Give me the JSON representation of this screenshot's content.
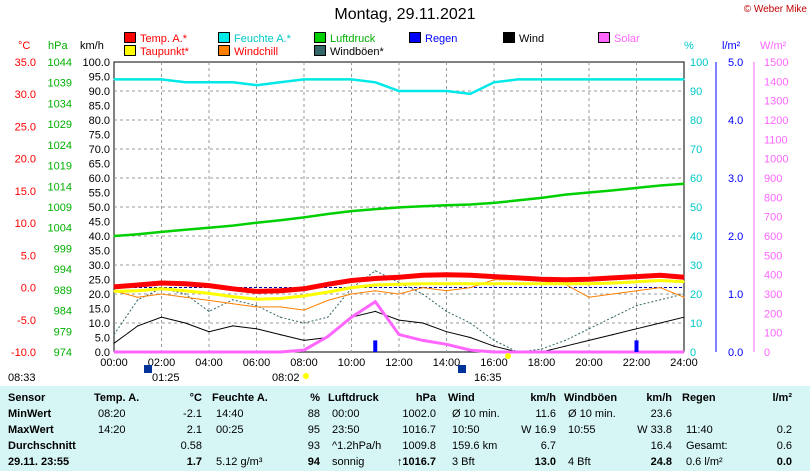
{
  "title": "Montag, 29.11.2021",
  "copyright": "© Weber Mike",
  "legend": [
    {
      "label": "Temp. A.*",
      "color": "#ff0000"
    },
    {
      "label": "Feuchte A.*",
      "color": "#00e8e8"
    },
    {
      "label": "Luftdruck",
      "color": "#00d000"
    },
    {
      "label": "Regen",
      "color": "#0000ff"
    },
    {
      "label": "Wind",
      "color": "#000000"
    },
    {
      "label": "Solar",
      "color": "#ff66ff"
    },
    {
      "label": "Taupunkt*",
      "color": "#ffff00"
    },
    {
      "label": "Windchill",
      "color": "#ff8000"
    },
    {
      "label": "Windböen*",
      "color": "#336666"
    }
  ],
  "axis_units": {
    "temp": "°C",
    "pressure": "hPa",
    "wind": "km/h",
    "humidity": "%",
    "rain": "l/m²",
    "solar": "W/m²"
  },
  "chart_data": {
    "type": "line",
    "x_labels": [
      "00:00",
      "02:00",
      "04:00",
      "06:00",
      "08:00",
      "10:00",
      "12:00",
      "14:00",
      "16:00",
      "18:00",
      "20:00",
      "22:00",
      "24:00"
    ],
    "temp_ticks": [
      "35.0",
      "30.0",
      "25.0",
      "20.0",
      "15.0",
      "10.0",
      "5.0",
      "0.0",
      "-5.0",
      "-10.0"
    ],
    "pressure_ticks": [
      "1044",
      "1039",
      "1034",
      "1029",
      "1024",
      "1019",
      "1014",
      "1009",
      "1004",
      "999",
      "994",
      "989",
      "984",
      "979",
      "974"
    ],
    "wind_ticks": [
      "100.0",
      "95.0",
      "90.0",
      "85.0",
      "80.0",
      "75.0",
      "70.0",
      "65.0",
      "60.0",
      "55.0",
      "50.0",
      "45.0",
      "40.0",
      "35.0",
      "30.0",
      "25.0",
      "20.0",
      "15.0",
      "10.0",
      "5.0",
      "0.0"
    ],
    "humidity_ticks": [
      "100",
      "90",
      "80",
      "70",
      "60",
      "50",
      "40",
      "30",
      "20",
      "10",
      "0"
    ],
    "rain_ticks": [
      "5.0",
      "4.0",
      "3.0",
      "2.0",
      "1.0",
      "0.0"
    ],
    "solar_ticks": [
      "1500",
      "1400",
      "1300",
      "1200",
      "1100",
      "1000",
      "900",
      "800",
      "700",
      "600",
      "500",
      "400",
      "300",
      "200",
      "100",
      "0"
    ],
    "x": [
      0,
      1,
      2,
      3,
      4,
      5,
      6,
      7,
      8,
      9,
      10,
      11,
      12,
      13,
      14,
      15,
      16,
      17,
      18,
      19,
      20,
      21,
      22,
      23,
      24
    ],
    "series": [
      {
        "name": "Temp. A.*",
        "axis": "temp",
        "values": [
          0.1,
          0.4,
          0.7,
          0.6,
          0.3,
          -0.2,
          -0.6,
          -0.5,
          -0.2,
          0.5,
          1.1,
          1.4,
          1.6,
          1.9,
          2.0,
          1.9,
          1.7,
          1.5,
          1.3,
          1.2,
          1.3,
          1.5,
          1.7,
          1.9,
          1.6
        ]
      },
      {
        "name": "Feuchte A.*",
        "axis": "humidity",
        "values": [
          94,
          94,
          94,
          93,
          93,
          93,
          92,
          93,
          94,
          94,
          94,
          93,
          90,
          90,
          90,
          89,
          93,
          94,
          94,
          94,
          94,
          94,
          94,
          94,
          94
        ]
      },
      {
        "name": "Luftdruck",
        "axis": "pressure",
        "values": [
          1002.0,
          1002.4,
          1003.0,
          1003.5,
          1004.0,
          1004.5,
          1005.2,
          1005.8,
          1006.5,
          1007.3,
          1008.0,
          1008.5,
          1008.9,
          1009.2,
          1009.4,
          1009.6,
          1010.0,
          1010.6,
          1011.2,
          1012.0,
          1012.5,
          1013.0,
          1013.6,
          1014.2,
          1014.6
        ]
      },
      {
        "name": "Taupunkt*",
        "axis": "temp",
        "values": [
          -0.6,
          -0.5,
          -0.2,
          -0.5,
          -0.9,
          -1.4,
          -1.8,
          -1.7,
          -1.3,
          -0.7,
          0.0,
          0.4,
          0.5,
          0.6,
          0.6,
          0.6,
          0.6,
          0.6,
          0.6,
          0.6,
          0.6,
          0.7,
          0.9,
          1.1,
          0.9
        ]
      },
      {
        "name": "Wind",
        "axis": "wind",
        "values": [
          3,
          9,
          12,
          10,
          7,
          9,
          8,
          6,
          4,
          5,
          12,
          14,
          11,
          10,
          7,
          5,
          2,
          0,
          0,
          2,
          4,
          6,
          8,
          10,
          12
        ]
      },
      {
        "name": "Windchill",
        "axis": "temp",
        "values": [
          -0.5,
          -1.5,
          -1.0,
          -1.5,
          -2.0,
          -2.5,
          -3.0,
          -3.0,
          -3.5,
          -2.0,
          -1.0,
          -0.5,
          -1.0,
          0.0,
          -0.5,
          0.0,
          1.2,
          1.2,
          1.0,
          0.5,
          -1.5,
          -1.0,
          -0.5,
          0.0,
          -1.5
        ]
      },
      {
        "name": "Windböen*",
        "axis": "wind",
        "values": [
          6,
          18,
          22,
          20,
          14,
          18,
          16,
          12,
          10,
          12,
          22,
          28,
          24,
          20,
          14,
          10,
          4,
          0,
          1,
          4,
          8,
          12,
          16,
          18,
          20
        ]
      },
      {
        "name": "Solar",
        "axis": "solar",
        "values": [
          0,
          0,
          0,
          0,
          0,
          0,
          0,
          0,
          10,
          80,
          180,
          260,
          90,
          60,
          40,
          10,
          0,
          0,
          0,
          0,
          0,
          0,
          0,
          0,
          0
        ]
      },
      {
        "name": "Regen",
        "axis": "rain",
        "values": [
          0,
          0,
          0,
          0,
          0,
          0,
          0,
          0,
          0,
          0,
          0,
          0.2,
          0,
          0,
          0,
          0,
          0,
          0,
          0,
          0,
          0,
          0,
          0.2,
          0,
          0
        ]
      }
    ]
  },
  "marks": {
    "sunrise": "08:02",
    "sunset": "16:35",
    "moonrise": "01:25",
    "left_time": "08:33"
  },
  "table": {
    "headers": [
      {
        "label": "Sensor",
        "unit": ""
      },
      {
        "label": "Temp. A.",
        "unit": "°C"
      },
      {
        "label": "Feuchte A.",
        "unit": "%"
      },
      {
        "label": "Luftdruck",
        "unit": "hPa"
      },
      {
        "label": "Wind",
        "unit": "km/h"
      },
      {
        "label": "Windböen",
        "unit": "km/h"
      },
      {
        "label": "Regen",
        "unit": "l/m²"
      }
    ],
    "rows": [
      {
        "label": "MinWert",
        "temp_time": "08:20",
        "temp": "-2.1",
        "hum_time": "14:40",
        "hum": "88",
        "press_time": "00:00",
        "press": "1002.0",
        "wind_desc": "Ø 10 min.",
        "wind": "11.6",
        "gust_desc": "Ø 10 min.",
        "gust": "23.6",
        "rain_desc": "",
        "rain": ""
      },
      {
        "label": "MaxWert",
        "temp_time": "14:20",
        "temp": "2.1",
        "hum_time": "00:25",
        "hum": "95",
        "press_time": "23:50",
        "press": "1016.7",
        "wind_desc": "10:50",
        "wind_dir": "W 16.9",
        "gust_desc": "10:55",
        "gust": "W 33.8",
        "rain_desc": "11:40",
        "rain": "0.2"
      },
      {
        "label": "Durchschnitt",
        "temp_time": "",
        "temp": "0.58",
        "hum_time": "",
        "hum": "93",
        "press_time": "^1.2hPa/h",
        "press": "1009.8",
        "wind_desc": "159.6 km",
        "wind": "6.7",
        "gust_desc": "",
        "gust": "16.4",
        "rain_desc": "Gesamt:",
        "rain": "0.6"
      },
      {
        "label": "29.11. 23:55",
        "temp_time": "",
        "temp": "1.7",
        "hum_time": "5.12 g/m³",
        "hum": "94",
        "press_time": "sonnig",
        "press": "↑1016.7",
        "wind_desc": "3 Bft",
        "wind": "13.0",
        "gust_desc": "4 Bft",
        "gust": "24.8",
        "rain_desc": "0.6 l/m²",
        "rain": "0.0"
      }
    ]
  }
}
